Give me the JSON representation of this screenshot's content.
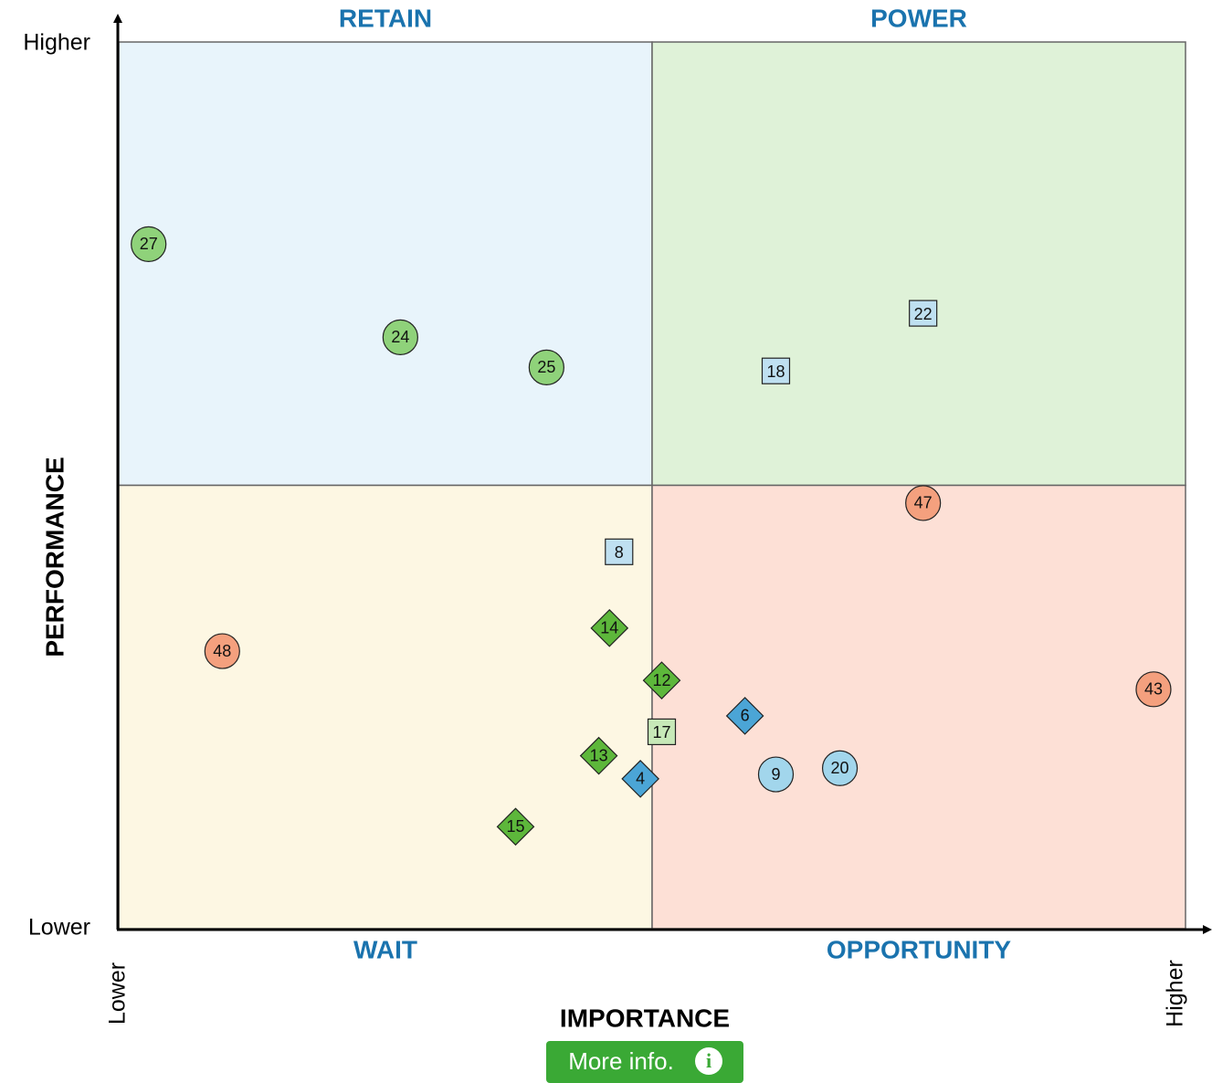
{
  "chart_data": {
    "type": "scatter",
    "xlabel": "IMPORTANCE",
    "ylabel": "PERFORMANCE",
    "xlim": [
      0,
      100
    ],
    "ylim": [
      0,
      100
    ],
    "xticks": [
      {
        "value": 0,
        "label": "Lower"
      },
      {
        "value": 100,
        "label": "Higher"
      }
    ],
    "yticks": [
      {
        "value": 0,
        "label": "Lower"
      },
      {
        "value": 100,
        "label": "Higher"
      }
    ],
    "quadrants": [
      {
        "label": "RETAIN",
        "color": "#e8f4fb"
      },
      {
        "label": "POWER",
        "color": "#dff2d8"
      },
      {
        "label": "WAIT",
        "color": "#fdf7e3"
      },
      {
        "label": "OPPORTUNITY",
        "color": "#fde0d6"
      }
    ],
    "series": [
      {
        "shape": "circle",
        "color": "#8fd27a",
        "labels": [
          "27",
          "24",
          "25"
        ],
        "x": [
          2.8,
          26.4,
          40.1
        ],
        "values": [
          77.2,
          66.7,
          63.3
        ]
      },
      {
        "shape": "square",
        "color": "#bfe0f1",
        "labels": [
          "22",
          "18",
          "8"
        ],
        "x": [
          75.4,
          61.6,
          46.9
        ],
        "values": [
          69.3,
          62.8,
          42.4
        ]
      },
      {
        "shape": "circle",
        "color": "#f4a07e",
        "labels": [
          "47",
          "48",
          "43"
        ],
        "x": [
          75.4,
          9.7,
          97.0
        ],
        "values": [
          48.0,
          31.3,
          27.0
        ]
      },
      {
        "shape": "diamond",
        "color": "#5db73b",
        "labels": [
          "14",
          "12",
          "13",
          "15"
        ],
        "x": [
          46.0,
          50.9,
          45.0,
          37.2
        ],
        "values": [
          33.9,
          28.0,
          19.5,
          11.5
        ]
      },
      {
        "shape": "square",
        "color": "#c7e9b8",
        "labels": [
          "17"
        ],
        "x": [
          50.9
        ],
        "values": [
          22.1
        ]
      },
      {
        "shape": "diamond",
        "color": "#4ba5d6",
        "labels": [
          "6",
          "4"
        ],
        "x": [
          58.7,
          48.9
        ],
        "values": [
          24.0,
          16.9
        ]
      },
      {
        "shape": "circle",
        "color": "#a2d6ec",
        "labels": [
          "9",
          "20"
        ],
        "x": [
          61.6,
          67.6
        ],
        "values": [
          17.4,
          18.1
        ]
      }
    ]
  },
  "button_label": "More info."
}
